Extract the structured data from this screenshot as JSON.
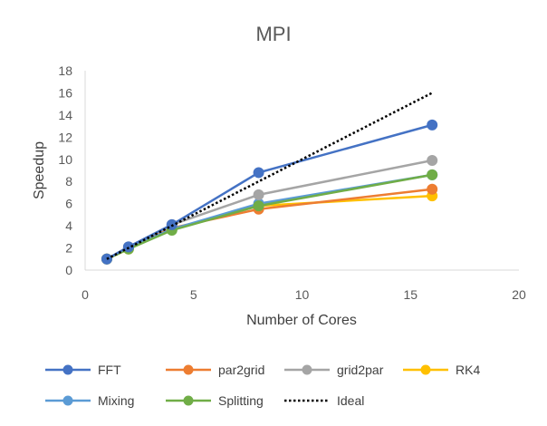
{
  "chart_data": {
    "type": "line",
    "title": "MPI",
    "xlabel": "Number of Cores",
    "ylabel": "Speedup",
    "xlim": [
      0,
      20
    ],
    "ylim": [
      0,
      18
    ],
    "xticks": [
      0,
      5,
      10,
      15,
      20
    ],
    "yticks": [
      0,
      2,
      4,
      6,
      8,
      10,
      12,
      14,
      16,
      18
    ],
    "x": [
      1,
      2,
      4,
      8,
      16
    ],
    "grid": false,
    "legend_position": "bottom",
    "series": [
      {
        "name": "FFT",
        "values": [
          1,
          2.1,
          4.1,
          8.8,
          13.1
        ],
        "color": "#4472C4",
        "style": "solid-marker"
      },
      {
        "name": "par2grid",
        "values": [
          1,
          2.0,
          3.8,
          5.5,
          7.3
        ],
        "color": "#ED7D31",
        "style": "solid-marker"
      },
      {
        "name": "grid2par",
        "values": [
          1,
          2.1,
          4.1,
          6.8,
          9.9
        ],
        "color": "#A5A5A5",
        "style": "solid-marker"
      },
      {
        "name": "RK4",
        "values": [
          1,
          1.9,
          3.7,
          5.8,
          6.7
        ],
        "color": "#FFC000",
        "style": "solid-marker"
      },
      {
        "name": "Mixing",
        "values": [
          1,
          2.0,
          3.7,
          6.0,
          8.6
        ],
        "color": "#5B9BD5",
        "style": "solid-marker"
      },
      {
        "name": "Splitting",
        "values": [
          1,
          1.9,
          3.6,
          5.8,
          8.6
        ],
        "color": "#70AD47",
        "style": "solid-marker"
      },
      {
        "name": "Ideal",
        "values": [
          1,
          2,
          4,
          8,
          16
        ],
        "color": "#000000",
        "style": "dotted"
      }
    ]
  }
}
